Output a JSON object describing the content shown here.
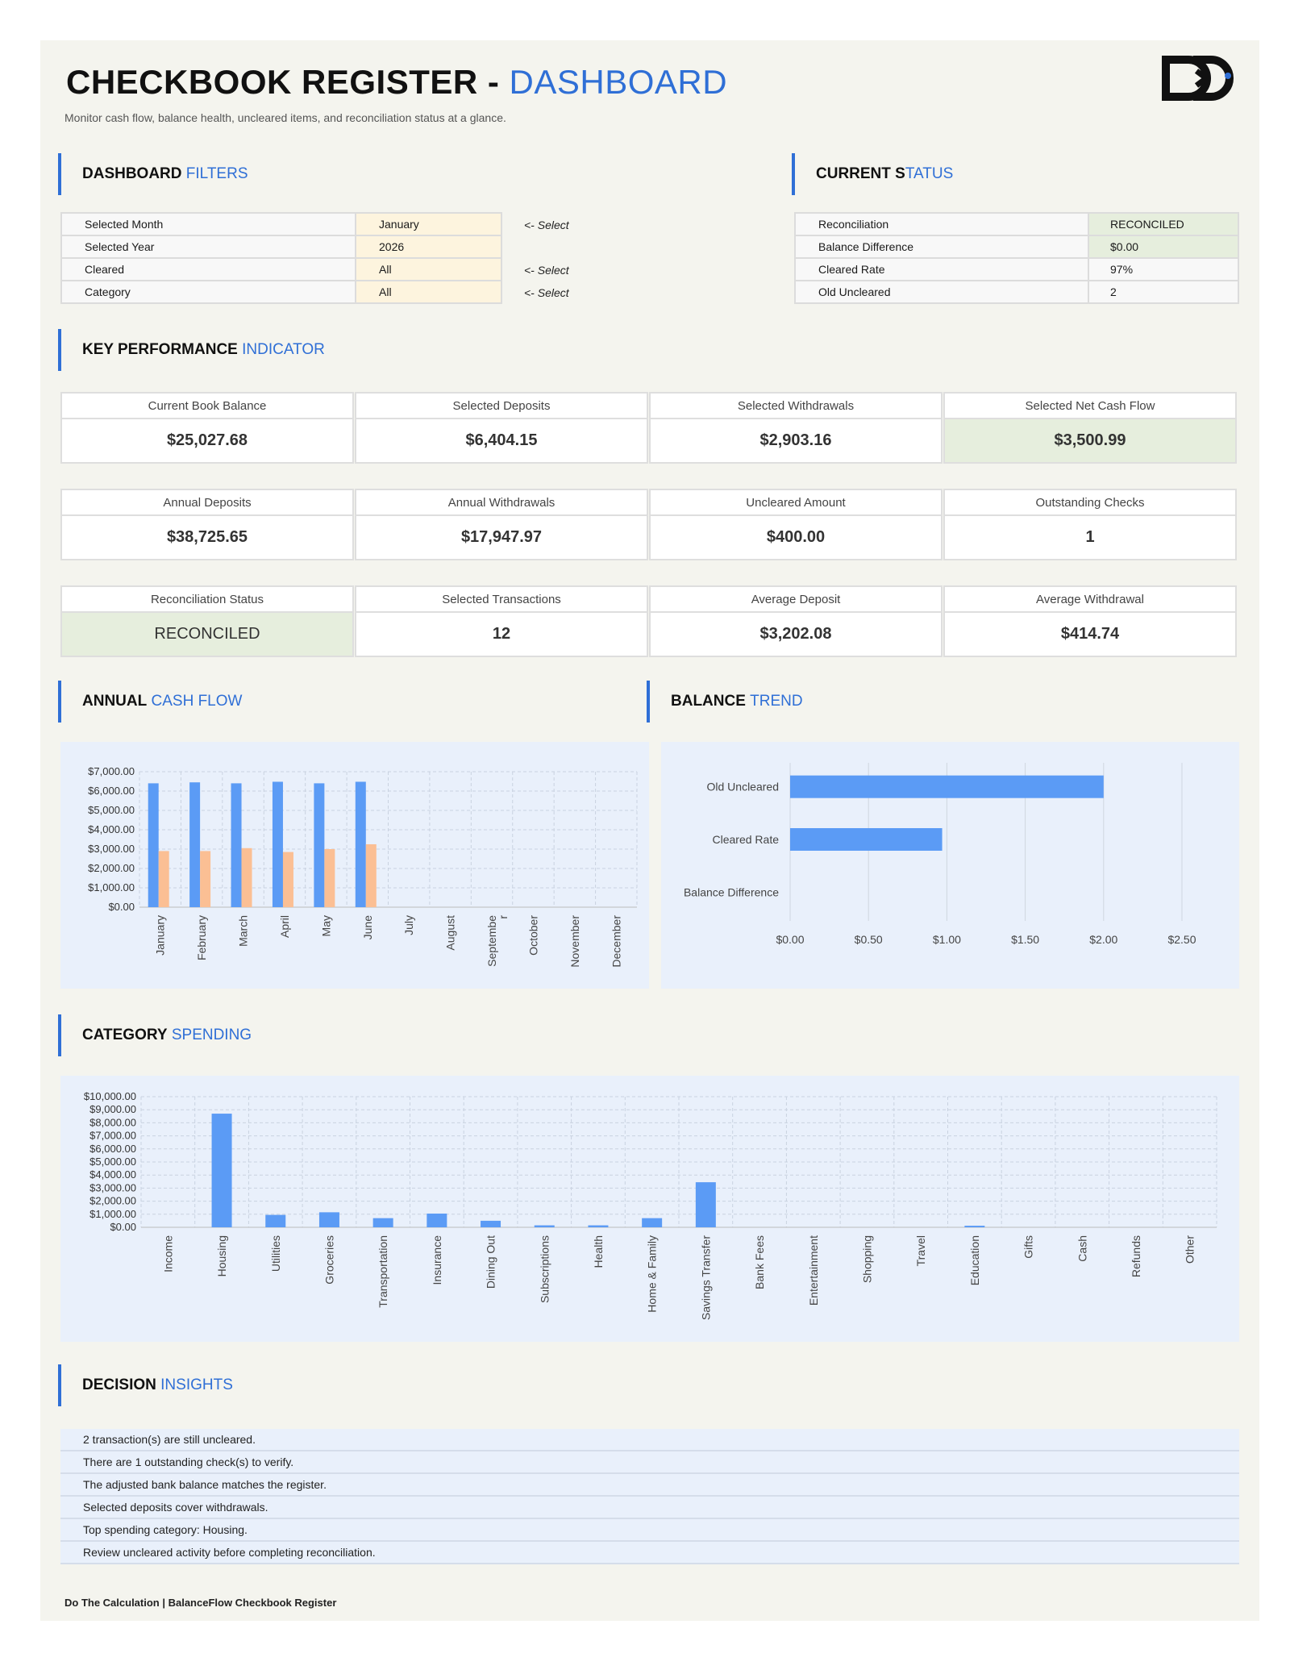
{
  "header": {
    "title_main": "CHECKBOOK REGISTER -",
    "title_accent": "DASHBOARD",
    "subtitle": "Monitor cash flow, balance health, uncleared items, and reconciliation status at a glance."
  },
  "filters": {
    "heading_a": "DASHBOARD",
    "heading_b": "FILTERS",
    "rows": [
      {
        "label": "Selected Month",
        "value": "January",
        "hint": "<- Select"
      },
      {
        "label": "Selected Year",
        "value": "2026",
        "hint": ""
      },
      {
        "label": "Cleared",
        "value": "All",
        "hint": "<- Select"
      },
      {
        "label": "Category",
        "value": "All",
        "hint": "<- Select"
      }
    ]
  },
  "status": {
    "heading_a": "CURRENT S",
    "heading_b": "TATUS",
    "rows": [
      {
        "label": "Reconciliation",
        "value": "RECONCILED"
      },
      {
        "label": "Balance Difference",
        "value": "$0.00"
      },
      {
        "label": "Cleared Rate",
        "value": "97%"
      },
      {
        "label": "Old Uncleared",
        "value": "2"
      }
    ]
  },
  "kpi": {
    "heading_a": "KEY PERFORMANCE",
    "heading_b": "INDICATOR",
    "cards": [
      {
        "label": "Current Book Balance",
        "value": "$25,027.68"
      },
      {
        "label": "Selected Deposits",
        "value": "$6,404.15"
      },
      {
        "label": "Selected Withdrawals",
        "value": "$2,903.16"
      },
      {
        "label": "Selected Net Cash Flow",
        "value": "$3,500.99"
      },
      {
        "label": "Annual Deposits",
        "value": "$38,725.65"
      },
      {
        "label": "Annual Withdrawals",
        "value": "$17,947.97"
      },
      {
        "label": "Uncleared Amount",
        "value": "$400.00"
      },
      {
        "label": "Outstanding Checks",
        "value": "1"
      },
      {
        "label": "Reconciliation Status",
        "value": "RECONCILED"
      },
      {
        "label": "Selected Transactions",
        "value": "12"
      },
      {
        "label": "Average Deposit",
        "value": "$3,202.08"
      },
      {
        "label": "Average Withdrawal",
        "value": "$414.74"
      }
    ]
  },
  "sections": {
    "cashflow_a": "ANNUAL",
    "cashflow_b": "CASH FLOW",
    "trend_a": "BALANCE",
    "trend_b": "TREND",
    "category_a": "CATEGORY",
    "category_b": "SPENDING",
    "insights_a": "DECISION",
    "insights_b": "INSIGHTS"
  },
  "colors": {
    "accent": "#2f6fd6",
    "bar_blue": "#5b9bf5",
    "bar_orange": "#fbbf94",
    "chart_bg": "#e9f0fb",
    "ok_green": "#e6eedd"
  },
  "chart_data": [
    {
      "type": "bar",
      "categories": [
        "January",
        "February",
        "March",
        "April",
        "May",
        "June",
        "July",
        "August",
        "Septembe\nr",
        "October",
        "November",
        "December"
      ],
      "series": [
        {
          "values": [
            6400,
            6450,
            6400,
            6480,
            6400,
            6480,
            0,
            0,
            0,
            0,
            0,
            0
          ]
        },
        {
          "values": [
            2900,
            2900,
            3050,
            2850,
            3000,
            3250,
            0,
            0,
            0,
            0,
            0,
            0
          ]
        }
      ],
      "ylim": [
        0,
        7000
      ],
      "yticks": [
        "$0.00",
        "$1,000.00",
        "$2,000.00",
        "$3,000.00",
        "$4,000.00",
        "$5,000.00",
        "$6,000.00",
        "$7,000.00"
      ],
      "grid": true
    },
    {
      "type": "bar",
      "orientation": "horizontal",
      "categories": [
        "Old Uncleared",
        "Cleared Rate",
        "Balance Difference"
      ],
      "values": [
        2,
        0.97,
        0
      ],
      "xlim": [
        0,
        2.5
      ],
      "xticks": [
        "$0.00",
        "$0.50",
        "$1.00",
        "$1.50",
        "$2.00",
        "$2.50"
      ],
      "grid": true
    },
    {
      "type": "bar",
      "categories": [
        "Income",
        "Housing",
        "Utilities",
        "Groceries",
        "Transportation",
        "Insurance",
        "Dining Out",
        "Subscriptions",
        "Health",
        "Home & Family",
        "Savings Transfer",
        "Bank Fees",
        "Entertainment",
        "Shopping",
        "Travel",
        "Education",
        "Gifts",
        "Cash",
        "Refunds",
        "Other"
      ],
      "values": [
        0,
        8700,
        950,
        1150,
        700,
        1050,
        500,
        150,
        150,
        700,
        3450,
        0,
        0,
        0,
        0,
        120,
        0,
        0,
        0,
        0
      ],
      "ylim": [
        0,
        10000
      ],
      "yticks": [
        "$0.00",
        "$1,000.00",
        "$2,000.00",
        "$3,000.00",
        "$4,000.00",
        "$5,000.00",
        "$6,000.00",
        "$7,000.00",
        "$8,000.00",
        "$9,000.00",
        "$10,000.00"
      ],
      "grid": true
    }
  ],
  "insights": [
    "2 transaction(s) are still uncleared.",
    "There are 1 outstanding check(s) to verify.",
    "The adjusted bank balance matches the register.",
    "Selected deposits cover withdrawals.",
    "Top spending category: Housing.",
    "Review uncleared activity before completing reconciliation."
  ],
  "footer": "Do The Calculation | BalanceFlow Checkbook Register"
}
